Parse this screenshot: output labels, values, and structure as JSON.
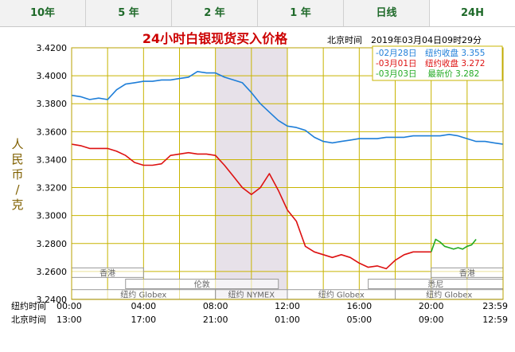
{
  "tabs": [
    {
      "label": "10年",
      "active": false
    },
    {
      "label": "5 年",
      "active": false
    },
    {
      "label": "2 年",
      "active": false
    },
    {
      "label": "1 年",
      "active": false
    },
    {
      "label": "日线",
      "active": false
    },
    {
      "label": "24H",
      "active": true
    }
  ],
  "chart_data": {
    "type": "line",
    "title": "24小时白银现货买入价格",
    "subtitle": "北京时间　2019年03月04日09时29分",
    "ylabel": "人民币/克",
    "ylim": [
      3.24,
      3.42
    ],
    "yticks": [
      3.24,
      3.26,
      3.28,
      3.3,
      3.32,
      3.34,
      3.36,
      3.38,
      3.4,
      3.42
    ],
    "ytick_labels": [
      "3.2400",
      "3.2600",
      "3.2800",
      "3.3000",
      "3.3200",
      "3.3400",
      "3.3600",
      "3.3800",
      "3.4000",
      "3.4200"
    ],
    "xlim": [
      0,
      24
    ],
    "grid": true,
    "legend_position": "top-right",
    "xaxis_rows": [
      {
        "label": "纽约时间",
        "ticks": [
          {
            "x": 0,
            "label": "00:00"
          },
          {
            "x": 4,
            "label": "04:00"
          },
          {
            "x": 8,
            "label": "08:00"
          },
          {
            "x": 12,
            "label": "12:00"
          },
          {
            "x": 16,
            "label": "16:00"
          },
          {
            "x": 20,
            "label": "20:00"
          },
          {
            "x": 23.983,
            "label": "23:59"
          }
        ]
      },
      {
        "label": "北京时间",
        "ticks": [
          {
            "x": 0,
            "label": "13:00"
          },
          {
            "x": 4,
            "label": "17:00"
          },
          {
            "x": 8,
            "label": "21:00"
          },
          {
            "x": 12,
            "label": "01:00"
          },
          {
            "x": 16,
            "label": "05:00"
          },
          {
            "x": 20,
            "label": "09:00"
          },
          {
            "x": 23.983,
            "label": "12:59"
          }
        ]
      }
    ],
    "shaded_band": {
      "x": [
        8,
        12
      ],
      "color": "#e7e1e9"
    },
    "market_sessions": [
      {
        "label": "香港",
        "row": 0,
        "start": 0,
        "end": 4
      },
      {
        "label": "香港",
        "row": 0,
        "start": 20,
        "end": 24
      },
      {
        "label": "伦敦",
        "row": 1,
        "start": 3,
        "end": 11.5
      },
      {
        "label": "悉尼",
        "row": 1,
        "start": 16.5,
        "end": 24
      },
      {
        "label": "纽约 Globex",
        "row": 2,
        "start": 0,
        "end": 8
      },
      {
        "label": "纽约 NYMEX",
        "row": 2,
        "start": 8,
        "end": 12
      },
      {
        "label": "纽约 Globex",
        "row": 2,
        "start": 12,
        "end": 18
      },
      {
        "label": "纽约 Globex",
        "row": 2,
        "start": 18,
        "end": 24
      }
    ],
    "series": [
      {
        "name": "-02月28日　纽约收盘 3.355",
        "color": "#1e7ed8",
        "x": [
          0,
          0.5,
          1,
          1.5,
          2,
          2.5,
          3,
          3.5,
          4,
          4.5,
          5,
          5.5,
          6,
          6.5,
          7,
          7.5,
          8,
          8.5,
          9,
          9.5,
          10,
          10.5,
          11,
          11.5,
          12,
          12.5,
          13,
          13.5,
          14,
          14.5,
          15,
          15.5,
          16,
          16.5,
          17,
          17.5,
          18,
          18.5,
          19,
          19.5,
          20,
          20.5,
          21,
          21.5,
          22,
          22.5,
          23,
          23.5,
          24
        ],
        "y": [
          3.386,
          3.385,
          3.383,
          3.384,
          3.383,
          3.39,
          3.394,
          3.395,
          3.396,
          3.396,
          3.397,
          3.397,
          3.398,
          3.399,
          3.403,
          3.402,
          3.402,
          3.399,
          3.397,
          3.395,
          3.388,
          3.38,
          3.374,
          3.368,
          3.364,
          3.363,
          3.361,
          3.356,
          3.353,
          3.352,
          3.353,
          3.354,
          3.355,
          3.355,
          3.355,
          3.356,
          3.356,
          3.356,
          3.357,
          3.357,
          3.357,
          3.357,
          3.358,
          3.357,
          3.355,
          3.353,
          3.353,
          3.352,
          3.351
        ]
      },
      {
        "name": "-03月01日　纽约收盘 3.272",
        "color": "#dd1111",
        "x": [
          0,
          0.5,
          1,
          1.5,
          2,
          2.5,
          3,
          3.5,
          4,
          4.5,
          5,
          5.5,
          6,
          6.5,
          7,
          7.5,
          8,
          8.5,
          9,
          9.5,
          10,
          10.5,
          11,
          11.5,
          12,
          12.5,
          13,
          13.5,
          14,
          14.5,
          15,
          15.5,
          16,
          16.5,
          17,
          17.5,
          18,
          18.5,
          19,
          19.5,
          20
        ],
        "y": [
          3.351,
          3.35,
          3.348,
          3.348,
          3.348,
          3.346,
          3.343,
          3.338,
          3.336,
          3.336,
          3.337,
          3.343,
          3.344,
          3.345,
          3.344,
          3.344,
          3.343,
          3.336,
          3.328,
          3.32,
          3.315,
          3.32,
          3.33,
          3.318,
          3.304,
          3.296,
          3.278,
          3.274,
          3.272,
          3.27,
          3.272,
          3.27,
          3.266,
          3.263,
          3.264,
          3.262,
          3.268,
          3.272,
          3.274,
          3.274,
          3.274
        ]
      },
      {
        "name": "-03月03日　 最新价 3.282",
        "color": "#22aa22",
        "x": [
          20,
          20.25,
          20.5,
          20.75,
          21,
          21.25,
          21.5,
          21.75,
          22,
          22.25,
          22.5
        ],
        "y": [
          3.274,
          3.283,
          3.281,
          3.278,
          3.277,
          3.276,
          3.277,
          3.276,
          3.278,
          3.279,
          3.283
        ]
      }
    ]
  }
}
